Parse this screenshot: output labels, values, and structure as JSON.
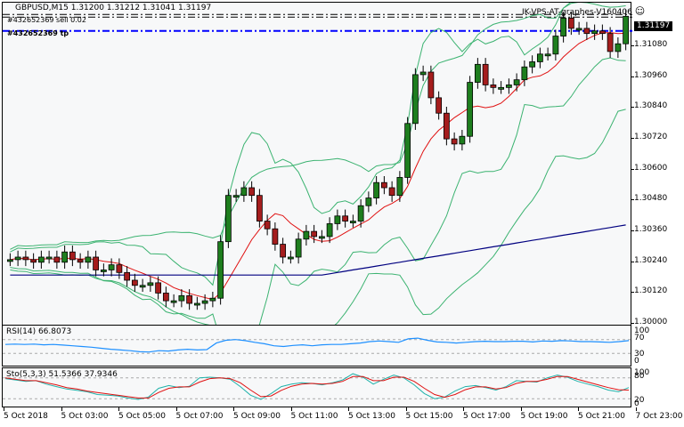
{
  "header": {
    "symbol_info": "GBPUSD,M15  1.31200 1.31212 1.31041 1.31197",
    "order_sell_label": "#432652369 sell 0.02",
    "order_tp_label": "#432652369 tp",
    "ea_label": "IK-VPS-AT-graphes-V160406",
    "ea_icon": "smiley-icon"
  },
  "price_axis": {
    "current_price": "1.31197",
    "ticks": [
      "1.31080",
      "1.30960",
      "1.30840",
      "1.30720",
      "1.30600",
      "1.30480",
      "1.30360",
      "1.30240",
      "1.30120",
      "1.30000"
    ]
  },
  "rsi": {
    "label": "RSI(14) 66.8073",
    "levels": [
      "100",
      "70",
      "30",
      "0"
    ]
  },
  "stochastic": {
    "label": "Sto(5,3,3) 51.5366 37.9346",
    "levels": [
      "100",
      "80",
      "20",
      "0"
    ]
  },
  "time_axis": [
    "5 Oct 2018",
    "5 Oct 03:00",
    "5 Oct 05:00",
    "5 Oct 07:00",
    "5 Oct 09:00",
    "5 Oct 11:00",
    "5 Oct 13:00",
    "5 Oct 15:00",
    "5 Oct 17:00",
    "5 Oct 19:00",
    "5 Oct 21:00",
    "7 Oct 23:00"
  ],
  "colors": {
    "bull": "#1e7e1e",
    "bear": "#a51d1d",
    "bands": "#3cb371",
    "ma_red": "#e01010",
    "ma_blue": "#000080",
    "rsi": "#1e90ff",
    "sto_main": "#20b2aa",
    "sto_signal": "#e01010",
    "tp_line": "#0000ff"
  },
  "chart_data": {
    "type": "candlestick",
    "title": "GBPUSD,M15",
    "ohlc_header": {
      "open": 1.312,
      "high": 1.31212,
      "low": 1.31041,
      "close": 1.31197
    },
    "ylim": [
      1.3,
      1.3125
    ],
    "yticks": [
      1.3,
      1.3012,
      1.3024,
      1.3036,
      1.3048,
      1.306,
      1.3072,
      1.3084,
      1.3096,
      1.3108,
      1.31197
    ],
    "xlabels": [
      "5 Oct 2018",
      "5 Oct 03:00",
      "5 Oct 05:00",
      "5 Oct 07:00",
      "5 Oct 09:00",
      "5 Oct 11:00",
      "5 Oct 13:00",
      "5 Oct 15:00",
      "5 Oct 17:00",
      "5 Oct 19:00",
      "5 Oct 21:00",
      "7 Oct 23:00"
    ],
    "candles_close_approx": [
      1.3025,
      1.3026,
      1.3025,
      1.3024,
      1.3026,
      1.3026,
      1.3024,
      1.3028,
      1.3025,
      1.3024,
      1.3026,
      1.3021,
      1.3021,
      1.3023,
      1.302,
      1.3017,
      1.3015,
      1.3015,
      1.3016,
      1.3012,
      1.3009,
      1.3009,
      1.3011,
      1.3008,
      1.3008,
      1.3009,
      1.301,
      1.3032,
      1.305,
      1.305,
      1.3053,
      1.305,
      1.304,
      1.3037,
      1.3031,
      1.3026,
      1.3026,
      1.3033,
      1.3036,
      1.3034,
      1.3034,
      1.3039,
      1.3042,
      1.304,
      1.304,
      1.3046,
      1.3049,
      1.3055,
      1.3053,
      1.305,
      1.3057,
      1.3078,
      1.3097,
      1.3098,
      1.3088,
      1.3082,
      1.3072,
      1.307,
      1.3073,
      1.3094,
      1.3101,
      1.3093,
      1.3092,
      1.3092,
      1.3093,
      1.3095,
      1.31,
      1.3102,
      1.3105,
      1.3105,
      1.3112,
      1.3119,
      1.3115,
      1.3115,
      1.3113,
      1.3114,
      1.3113,
      1.3106,
      1.3109,
      1.31197
    ],
    "indicators": {
      "rsi_14": {
        "last": 66.8073,
        "levels": [
          70,
          30
        ],
        "range": [
          0,
          100
        ]
      },
      "stochastic_5_3_3": {
        "main": 51.5366,
        "signal": 37.9346,
        "levels": [
          80,
          20
        ],
        "range": [
          0,
          100
        ]
      },
      "bollinger_bands": true,
      "ma_fast": "red",
      "ma_slow": "navy"
    },
    "order_lines": [
      {
        "label": "#432652369 sell 0.02",
        "price": 1.31197,
        "style": "dash-dot black"
      },
      {
        "label": "#432652369 tp",
        "price": 1.3114,
        "style": "dash-dot blue"
      }
    ]
  }
}
